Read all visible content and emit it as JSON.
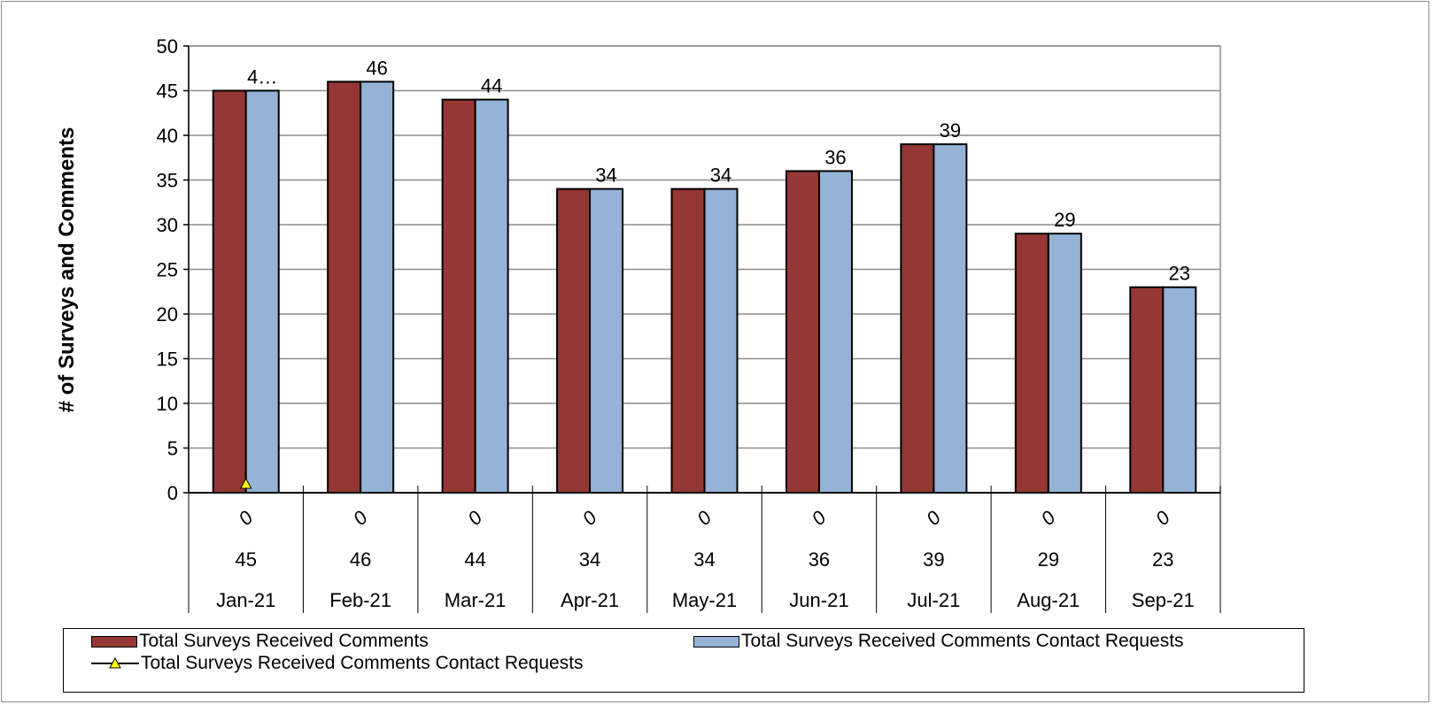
{
  "chart_data": {
    "type": "bar",
    "ylabel": "# of Surveys and Comments",
    "ylim": [
      0,
      50
    ],
    "ytick_step": 5,
    "categories": [
      "Jan-21",
      "Feb-21",
      "Mar-21",
      "Apr-21",
      "May-21",
      "Jun-21",
      "Jul-21",
      "Aug-21",
      "Sep-21"
    ],
    "series": [
      {
        "name": "Total Surveys Received Comments",
        "type": "bar",
        "color": "#953735",
        "values": [
          45,
          46,
          44,
          34,
          34,
          36,
          39,
          29,
          23
        ]
      },
      {
        "name": "Total Surveys Received Comments Contact Requests",
        "type": "bar",
        "color": "#95b3d7",
        "values": [
          45,
          46,
          44,
          34,
          34,
          36,
          39,
          29,
          23
        ]
      },
      {
        "name": "Total Surveys Received Comments Contact Requests",
        "type": "line",
        "color": "#ffff00",
        "marker": "triangle",
        "values": [
          0,
          0,
          0,
          0,
          0,
          0,
          0,
          0,
          0
        ]
      }
    ],
    "data_labels": [
      "4…",
      "46",
      "44",
      "34",
      "34",
      "36",
      "39",
      "29",
      "23"
    ],
    "table_rows": [
      [
        "0",
        "0",
        "0",
        "0",
        "0",
        "0",
        "0",
        "0",
        "0"
      ],
      [
        "45",
        "46",
        "44",
        "34",
        "34",
        "36",
        "39",
        "29",
        "23"
      ]
    ],
    "grid": true,
    "legend_position": "bottom"
  }
}
